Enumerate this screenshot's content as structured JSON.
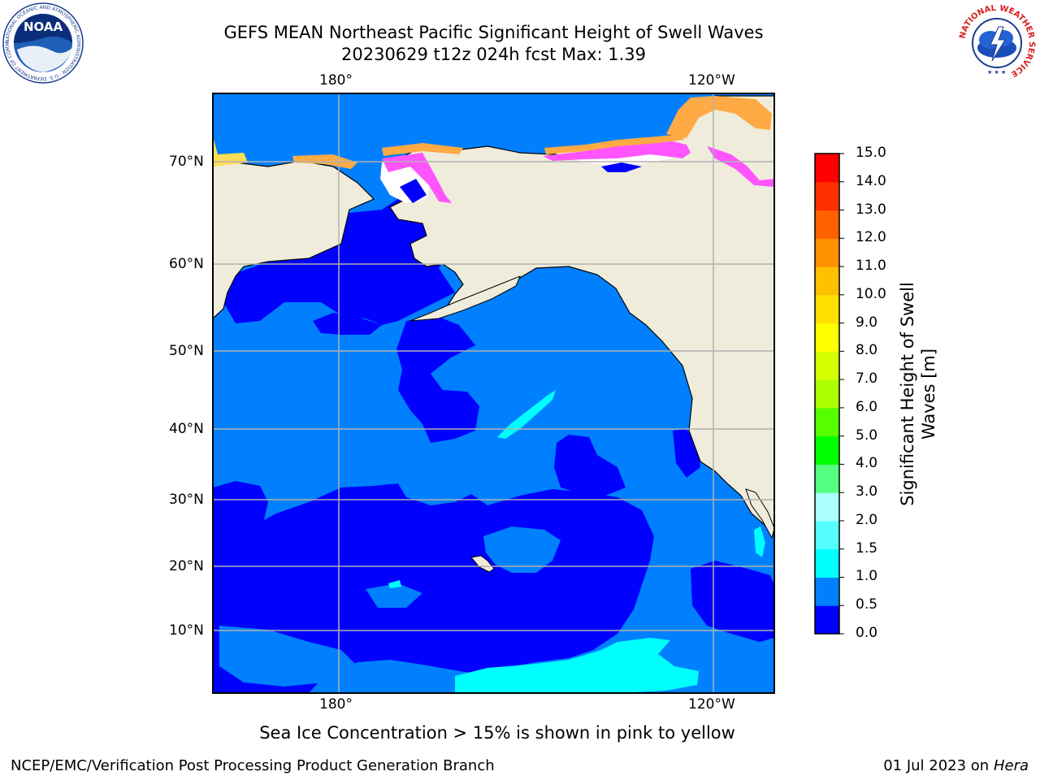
{
  "title_line1": "GEFS MEAN Northeast Pacific Significant Height of Swell Waves",
  "title_line2": "20230629 t12z 024h fcst   Max: 1.39",
  "logos": {
    "noaa_text": "NOAA",
    "noaa_ring": "NATIONAL OCEANIC AND ATMOSPHERIC ADMINISTRATION · U.S. DEPARTMENT OF COMMERCE",
    "nws_ring": "NATIONAL WEATHER SERVICE"
  },
  "map": {
    "lon_labels": {
      "left": "180°",
      "right": "120°W"
    },
    "lat_labels": [
      "70°N",
      "60°N",
      "50°N",
      "40°N",
      "30°N",
      "20°N",
      "10°N"
    ]
  },
  "colorbar": {
    "title_line1": "Significant Height of Swell",
    "title_line2": "Waves [m]",
    "ticks": [
      "0.0",
      "0.5",
      "1.0",
      "1.5",
      "2.0",
      "3.0",
      "4.0",
      "5.0",
      "6.0",
      "7.0",
      "8.0",
      "9.0",
      "10.0",
      "11.0",
      "12.0",
      "13.0",
      "14.0",
      "15.0"
    ],
    "colors": [
      "#0000ff",
      "#0080ff",
      "#00ffff",
      "#55ffff",
      "#aaffff",
      "#55ff80",
      "#00ff00",
      "#55ff00",
      "#aaff00",
      "#d5ff00",
      "#ffff00",
      "#ffe000",
      "#ffc000",
      "#ff9000",
      "#ff6000",
      "#ff3000",
      "#ff0000"
    ]
  },
  "palette": {
    "land": "#efecdc",
    "ocean_low": "#0000ff",
    "ocean_mid": "#0080ff",
    "ocean_high": "#00ffff",
    "ice_pink": "#ff55ff",
    "ice_orange": "#ffaa44",
    "ice_yellow": "#ffdd55"
  },
  "caption": "Sea Ice Concentration > 15% is shown in pink to yellow",
  "footer": {
    "left": "NCEP/EMC/Verification Post Processing Product Generation Branch",
    "date": "01 Jul 2023 on ",
    "machine": "Hera"
  }
}
